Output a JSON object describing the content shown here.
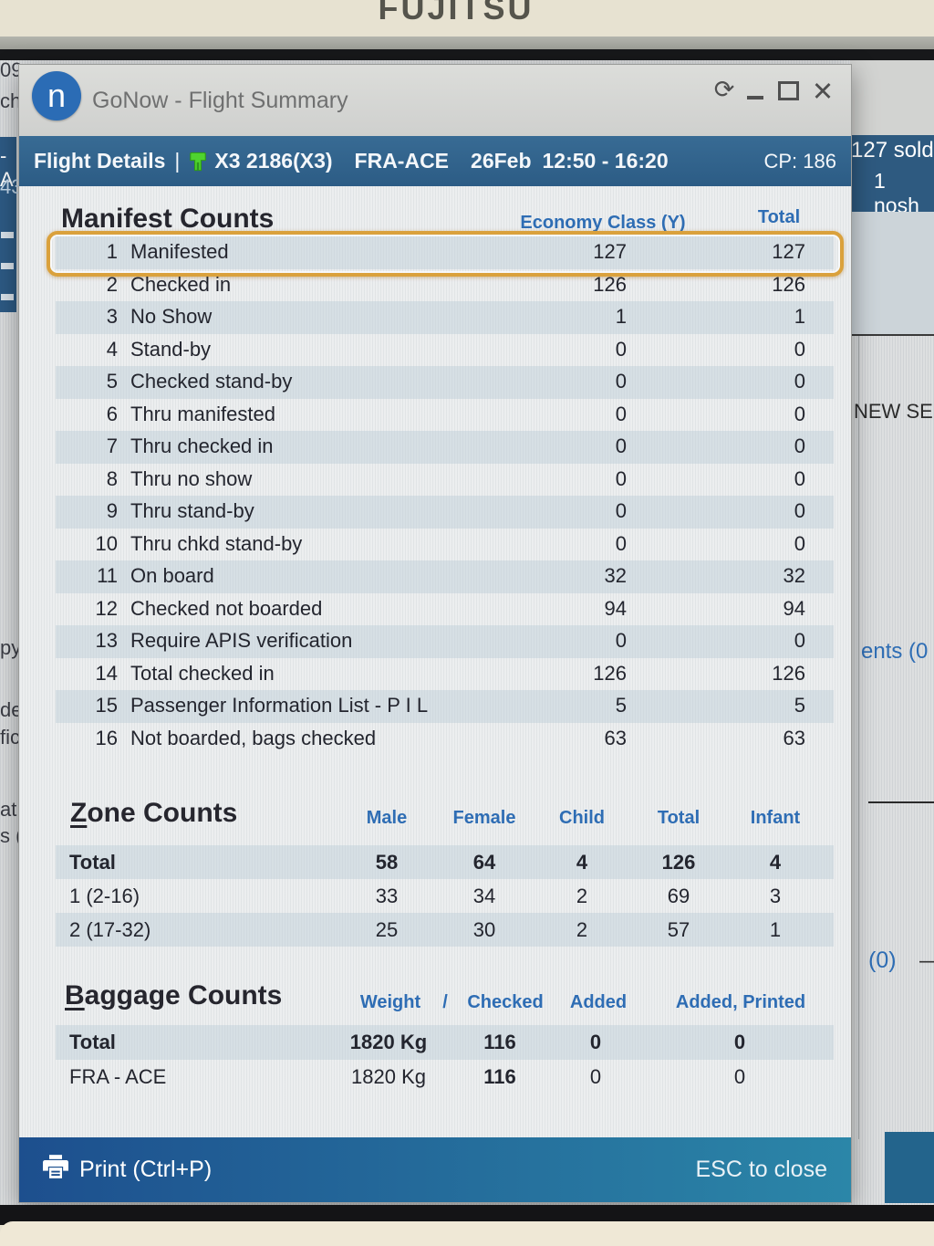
{
  "monitor": {
    "brand": "FUJITSU"
  },
  "window": {
    "title": "GoNow - Flight Summary",
    "logo_letter": "n",
    "icons": {
      "sync": "⟳",
      "close": "✕"
    }
  },
  "flight_header": {
    "label": "Flight Details",
    "separator": "|",
    "flight_number": "X3 2186(X3)",
    "route": "FRA-ACE",
    "date": "26Feb",
    "time": "12:50 - 16:20",
    "cp_label": "CP: 186"
  },
  "manifest": {
    "title": "Manifest Counts",
    "columns": {
      "economy": "Economy Class (Y)",
      "total": "Total"
    },
    "highlighted_row_num": 1,
    "rows": [
      {
        "num": "1",
        "label": "Manifested",
        "economy": "127",
        "total": "127"
      },
      {
        "num": "2",
        "label": "Checked in",
        "economy": "126",
        "total": "126"
      },
      {
        "num": "3",
        "label": "No Show",
        "economy": "1",
        "total": "1"
      },
      {
        "num": "4",
        "label": "Stand-by",
        "economy": "0",
        "total": "0"
      },
      {
        "num": "5",
        "label": "Checked stand-by",
        "economy": "0",
        "total": "0"
      },
      {
        "num": "6",
        "label": "Thru manifested",
        "economy": "0",
        "total": "0"
      },
      {
        "num": "7",
        "label": "Thru checked in",
        "economy": "0",
        "total": "0"
      },
      {
        "num": "8",
        "label": "Thru no show",
        "economy": "0",
        "total": "0"
      },
      {
        "num": "9",
        "label": "Thru stand-by",
        "economy": "0",
        "total": "0"
      },
      {
        "num": "10",
        "label": "Thru chkd stand-by",
        "economy": "0",
        "total": "0"
      },
      {
        "num": "11",
        "label": "On board",
        "economy": "32",
        "total": "32"
      },
      {
        "num": "12",
        "label": "Checked not boarded",
        "economy": "94",
        "total": "94"
      },
      {
        "num": "13",
        "label": "Require APIS verification",
        "economy": "0",
        "total": "0"
      },
      {
        "num": "14",
        "label": "Total checked in",
        "economy": "126",
        "total": "126"
      },
      {
        "num": "15",
        "label": "Passenger Information List - P I L",
        "economy": "5",
        "total": "5"
      },
      {
        "num": "16",
        "label": "Not boarded, bags checked",
        "economy": "63",
        "total": "63"
      }
    ]
  },
  "zone": {
    "title": "Zone Counts",
    "columns": [
      "Male",
      "Female",
      "Child",
      "Total",
      "Infant"
    ],
    "rows": [
      {
        "label": "Total",
        "male": "58",
        "female": "64",
        "child": "4",
        "total": "126",
        "infant": "4",
        "bold": true
      },
      {
        "label": "1 (2-16)",
        "male": "33",
        "female": "34",
        "child": "2",
        "total": "69",
        "infant": "3",
        "bold": false
      },
      {
        "label": "2 (17-32)",
        "male": "25",
        "female": "30",
        "child": "2",
        "total": "57",
        "infant": "1",
        "bold": false
      }
    ]
  },
  "baggage": {
    "title": "Baggage Counts",
    "columns": [
      "Weight",
      "/",
      "Checked",
      "Added",
      "Added, Printed"
    ],
    "rows": [
      {
        "label": "Total",
        "weight": "1820 Kg",
        "checked": "116",
        "added": "0",
        "added_printed": "0",
        "bold": true
      },
      {
        "label": "FRA - ACE",
        "weight": "1820 Kg",
        "checked": "116",
        "added": "0",
        "added_printed": "0",
        "bold": false
      }
    ]
  },
  "footer": {
    "print_label": "Print (Ctrl+P)",
    "esc_label": "ESC to close"
  },
  "background": {
    "left": {
      "a": "09",
      "b": "ch",
      "c": "-A",
      "d": "43",
      "e": "py",
      "f": "de",
      "g": "fic",
      "h": "at",
      "i": "s ("
    },
    "right": {
      "sold": "127 sold",
      "nosh": "1 nosh",
      "new_search": "NEW SE",
      "ents": "ents (0",
      "zero": "(0)",
      "dash": "—"
    }
  },
  "colors": {
    "accent_blue": "#2e6db4",
    "header_bar_blue": "#2e6190",
    "footer_gradient_left": "#1d4f8e",
    "footer_gradient_right": "#2b86a8",
    "highlight_orange": "#daa13c",
    "pax_icon_green": "#4fd32f",
    "logo_blue": "#2b6cb5"
  }
}
